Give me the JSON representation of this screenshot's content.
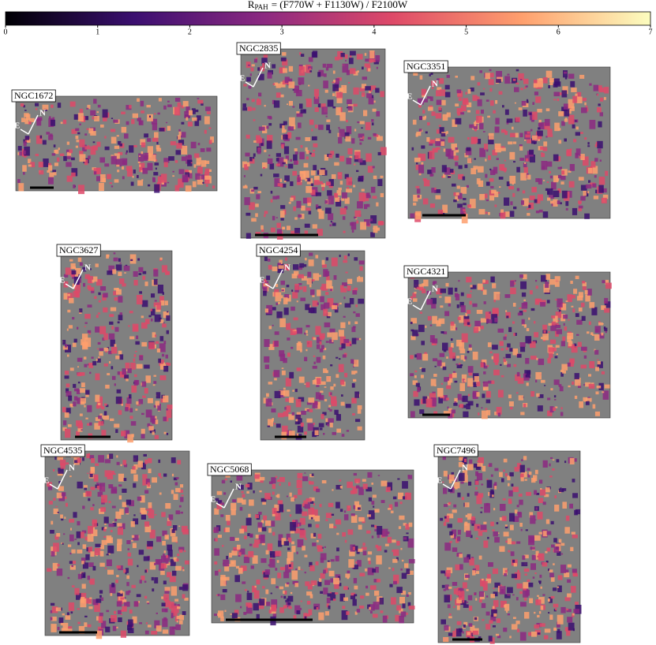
{
  "colorbar": {
    "symbol": "R",
    "subscript": "PAH",
    "expression": "= (F770W + F1130W) / F2100W",
    "lim": [
      0,
      7
    ],
    "ticks": [
      0,
      1,
      2,
      3,
      4,
      5,
      6,
      7
    ],
    "colormap": [
      "#000004",
      "#3b0f70",
      "#8c2981",
      "#de4968",
      "#fe9f6d",
      "#fcfdbf"
    ]
  },
  "compass": {
    "north": "N",
    "east": "E"
  },
  "panels": [
    {
      "label": "NGC1672"
    },
    {
      "label": "NGC2835"
    },
    {
      "label": "NGC3351"
    },
    {
      "label": "NGC3627"
    },
    {
      "label": "NGC4254"
    },
    {
      "label": "NGC4321"
    },
    {
      "label": "NGC4535"
    },
    {
      "label": "NGC5068"
    },
    {
      "label": "NGC7496"
    }
  ]
}
